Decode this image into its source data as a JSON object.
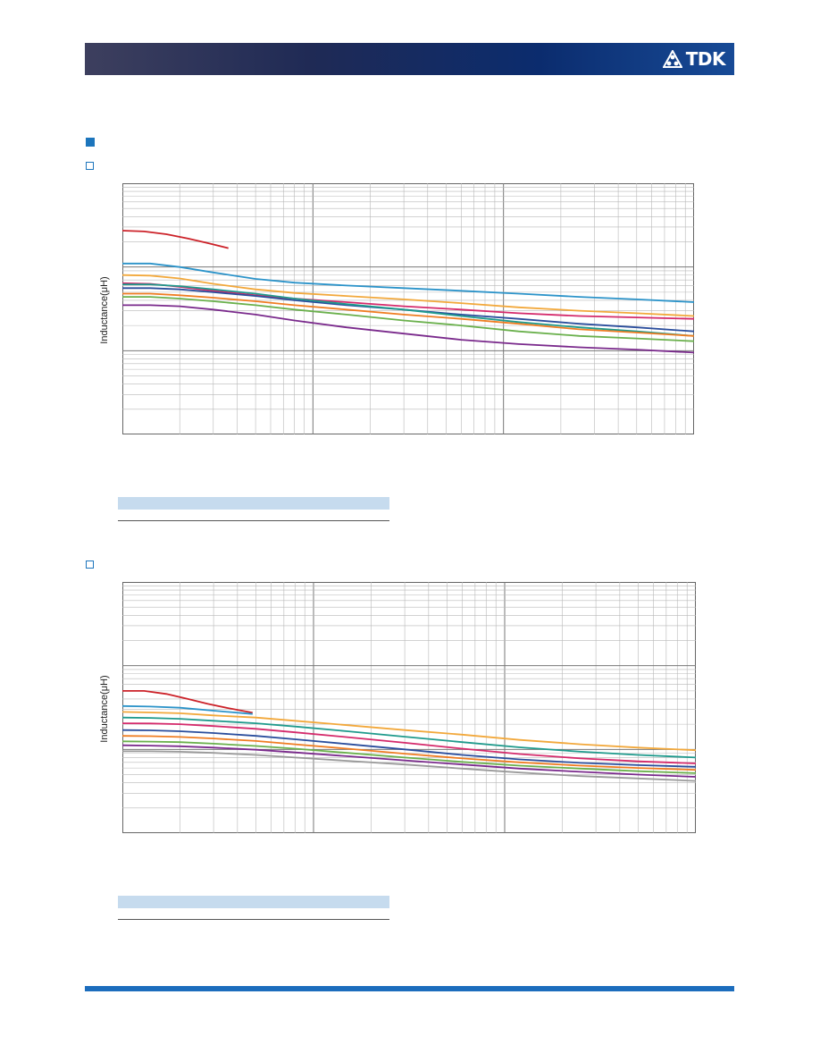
{
  "header": {
    "logo_text": "TDK",
    "logo_icon": "tdk-triangle-logo",
    "band_colors": [
      "#3d3f5e",
      "#0b2c6e",
      "#174a96"
    ]
  },
  "accent_color": "#1c75bc",
  "charts": [
    {
      "id": "chart-1",
      "ylabel": "Inductance(μH)"
    },
    {
      "id": "chart-2",
      "ylabel": "Inductance(μH)"
    }
  ],
  "chart_data": [
    {
      "type": "line",
      "title": "",
      "xlabel": "",
      "ylabel": "Inductance(μH)",
      "x_scale": "log",
      "y_scale": "log",
      "grid": true,
      "series": [
        {
          "color": "#cc2229",
          "x": [
            1,
            1.3,
            1.7,
            2.2,
            2.8,
            3.6
          ],
          "y": [
            272,
            266,
            246,
            219,
            193,
            168
          ]
        },
        {
          "color": "#2b93c9",
          "x": [
            1,
            1.4,
            2,
            3,
            5,
            8,
            15,
            30,
            60,
            120,
            250,
            500,
            1000
          ],
          "y": [
            110,
            110,
            100,
            86,
            72,
            65,
            60,
            56,
            52,
            48,
            44,
            41,
            38
          ]
        },
        {
          "color": "#f2a83b",
          "x": [
            1,
            1.4,
            2,
            3,
            5,
            8,
            15,
            30,
            60,
            120,
            250,
            500,
            1000
          ],
          "y": [
            80,
            79,
            73,
            63,
            54,
            49,
            45,
            41,
            37,
            33,
            30,
            28,
            26
          ]
        },
        {
          "color": "#d42a6b",
          "x": [
            1,
            1.4,
            2,
            3,
            5,
            8,
            15,
            30,
            60,
            120,
            250,
            500,
            1000
          ],
          "y": [
            64,
            63,
            58,
            52,
            46,
            42,
            38,
            34,
            31,
            28,
            26,
            25,
            24
          ]
        },
        {
          "color": "#2a4d9c",
          "x": [
            1,
            1.4,
            2,
            3,
            5,
            8,
            15,
            30,
            60,
            120,
            250,
            500,
            1000
          ],
          "y": [
            56,
            56,
            54,
            50,
            45,
            40,
            35,
            31,
            27,
            24,
            21,
            19,
            17
          ]
        },
        {
          "color": "#1f9a8c",
          "x": [
            1,
            1.4,
            2,
            3,
            5,
            8,
            15,
            30,
            60,
            120,
            250,
            500,
            1000
          ],
          "y": [
            62,
            62,
            59,
            54,
            48,
            42,
            36,
            31,
            26,
            22,
            19,
            17,
            15
          ]
        },
        {
          "color": "#ef7d22",
          "x": [
            1,
            1.4,
            2,
            3,
            5,
            8,
            15,
            30,
            60,
            120,
            250,
            500,
            1000
          ],
          "y": [
            48,
            48,
            46,
            43,
            39,
            35,
            31,
            27,
            24,
            21,
            18,
            16.5,
            15
          ]
        },
        {
          "color": "#6ab04c",
          "x": [
            1,
            1.4,
            2,
            3,
            5,
            8,
            15,
            30,
            60,
            120,
            250,
            500,
            1000
          ],
          "y": [
            44,
            44,
            42,
            39,
            35,
            31,
            27,
            23,
            20,
            17,
            15,
            14,
            13
          ]
        },
        {
          "color": "#7a2a8c",
          "x": [
            1,
            1.4,
            2,
            3,
            5,
            8,
            15,
            30,
            60,
            120,
            250,
            500,
            1000
          ],
          "y": [
            35,
            35,
            34,
            31,
            27,
            23,
            19,
            16,
            13.5,
            12,
            11,
            10.3,
            9.5
          ]
        }
      ]
    },
    {
      "type": "line",
      "title": "",
      "xlabel": "",
      "ylabel": "Inductance(μH)",
      "x_scale": "log",
      "y_scale": "log",
      "grid": true,
      "series": [
        {
          "color": "#cc2229",
          "x": [
            1,
            1.3,
            1.7,
            2.2,
            2.8,
            3.6,
            4.8
          ],
          "y": [
            500,
            500,
            460,
            400,
            350,
            310,
            275
          ]
        },
        {
          "color": "#2b93c9",
          "x": [
            1,
            1.4,
            2,
            3,
            4.8
          ],
          "y": [
            330,
            325,
            315,
            290,
            265
          ]
        },
        {
          "color": "#f2a83b",
          "x": [
            1,
            1.4,
            2,
            3,
            5,
            8,
            15,
            30,
            60,
            120,
            250,
            500,
            1000
          ],
          "y": [
            280,
            276,
            270,
            255,
            240,
            220,
            195,
            170,
            150,
            130,
            115,
            105,
            98
          ]
        },
        {
          "color": "#1f9a8c",
          "x": [
            1,
            1.4,
            2,
            3,
            5,
            8,
            15,
            30,
            60,
            120,
            250,
            500,
            1000
          ],
          "y": [
            240,
            238,
            232,
            220,
            205,
            188,
            165,
            142,
            122,
            106,
            94,
            86,
            80
          ]
        },
        {
          "color": "#d42a6b",
          "x": [
            1,
            1.4,
            2,
            3,
            5,
            8,
            15,
            30,
            60,
            120,
            250,
            500,
            1000
          ],
          "y": [
            205,
            204,
            200,
            190,
            176,
            160,
            140,
            120,
            102,
            88,
            78,
            72,
            68
          ]
        },
        {
          "color": "#2a4d9c",
          "x": [
            1,
            1.4,
            2,
            3,
            5,
            8,
            15,
            30,
            60,
            120,
            250,
            500,
            1000
          ],
          "y": [
            170,
            169,
            165,
            157,
            145,
            132,
            116,
            100,
            86,
            76,
            69,
            65,
            62
          ]
        },
        {
          "color": "#ef7d22",
          "x": [
            1,
            1.4,
            2,
            3,
            5,
            8,
            15,
            30,
            60,
            120,
            250,
            500,
            1000
          ],
          "y": [
            145,
            144,
            141,
            135,
            126,
            115,
            102,
            89,
            78,
            70,
            64,
            60,
            57
          ]
        },
        {
          "color": "#6ab04c",
          "x": [
            1,
            1.4,
            2,
            3,
            5,
            8,
            15,
            30,
            60,
            120,
            250,
            500,
            1000
          ],
          "y": [
            125,
            124,
            122,
            117,
            110,
            102,
            91,
            80,
            71,
            64,
            59,
            55,
            52
          ]
        },
        {
          "color": "#7a2a8c",
          "x": [
            1,
            1.4,
            2,
            3,
            5,
            8,
            15,
            30,
            60,
            120,
            250,
            500,
            1000
          ],
          "y": [
            112,
            111,
            109,
            105,
            99,
            92,
            83,
            74,
            66,
            59,
            54,
            50,
            47
          ]
        },
        {
          "color": "#9a9a9a",
          "x": [
            1,
            1.4,
            2,
            3,
            5,
            8,
            15,
            30,
            60,
            120,
            250,
            500,
            1000
          ],
          "y": [
            95,
            95,
            94,
            91,
            86,
            80,
            73,
            66,
            59,
            53,
            48,
            45,
            42
          ]
        }
      ]
    }
  ]
}
